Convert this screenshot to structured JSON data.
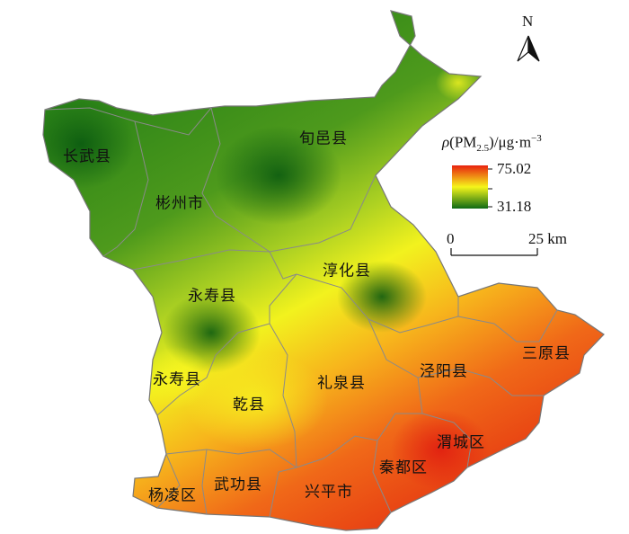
{
  "map": {
    "counties": [
      {
        "id": "changwu",
        "name": "长武县"
      },
      {
        "id": "xunyi",
        "name": "旬邑县"
      },
      {
        "id": "binzhou",
        "name": "彬州市"
      },
      {
        "id": "chunhua",
        "name": "淳化县"
      },
      {
        "id": "yongshou-n",
        "name": "永寿县"
      },
      {
        "id": "yongshou-s",
        "name": "永寿县"
      },
      {
        "id": "qianxian",
        "name": "乾县"
      },
      {
        "id": "liquan",
        "name": "礼泉县"
      },
      {
        "id": "jingyang",
        "name": "泾阳县"
      },
      {
        "id": "sanyuan",
        "name": "三原县"
      },
      {
        "id": "weicheng",
        "name": "渭城区"
      },
      {
        "id": "qindu",
        "name": "秦都区"
      },
      {
        "id": "xingping",
        "name": "兴平市"
      },
      {
        "id": "wugong",
        "name": "武功县"
      },
      {
        "id": "yangling",
        "name": "杨凌区"
      }
    ],
    "colors": {
      "high": "#e8220f",
      "mid": "#f5f51a",
      "low": "#0e6a14",
      "boundary": "#8a8a8a"
    }
  },
  "legend": {
    "title_rho": "ρ",
    "title_pm": "(PM",
    "title_sub": "2.5",
    "title_unit": ")/μg·m",
    "title_sup": "−3",
    "max": "75.02",
    "min": "31.18"
  },
  "scale_bar": {
    "left_label": "0",
    "right_label": "25 km"
  },
  "north_arrow": {
    "label": "N"
  }
}
